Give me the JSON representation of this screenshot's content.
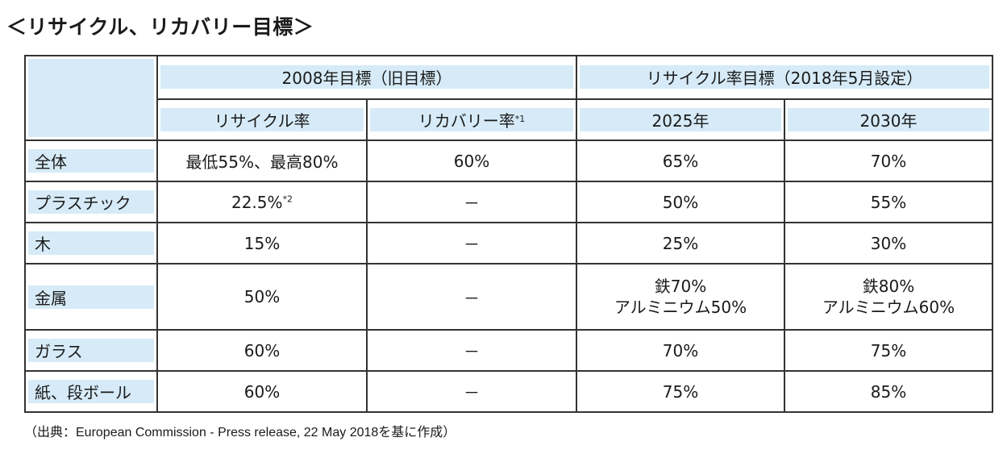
{
  "title": "＜リサイクル、リカバリー目標＞",
  "table": {
    "group_headers": {
      "old": "2008年目標（旧目標）",
      "new": "リサイクル率目標（2018年5月設定）"
    },
    "sub_headers": {
      "recycle_rate": "リサイクル率",
      "recovery_rate": "リカバリー率",
      "recovery_note": "*1",
      "y2025": "2025年",
      "y2030": "2030年"
    },
    "rows": [
      {
        "label": "全体",
        "c1": "最低55%、最高80%",
        "c1_note": "",
        "c2": "60%",
        "c3": "65%",
        "c3b": "",
        "c4": "70%",
        "c4b": ""
      },
      {
        "label": "プラスチック",
        "c1": "22.5%",
        "c1_note": "*2",
        "c2": "－",
        "c3": "50%",
        "c3b": "",
        "c4": "55%",
        "c4b": ""
      },
      {
        "label": "木",
        "c1": "15%",
        "c1_note": "",
        "c2": "－",
        "c3": "25%",
        "c3b": "",
        "c4": "30%",
        "c4b": ""
      },
      {
        "label": "金属",
        "c1": "50%",
        "c1_note": "",
        "c2": "－",
        "c3": "鉄70%",
        "c3b": "アルミニウム50%",
        "c4": "鉄80%",
        "c4b": "アルミニウム60%"
      },
      {
        "label": "ガラス",
        "c1": "60%",
        "c1_note": "",
        "c2": "－",
        "c3": "70%",
        "c3b": "",
        "c4": "75%",
        "c4b": ""
      },
      {
        "label": "紙、段ボール",
        "c1": "60%",
        "c1_note": "",
        "c2": "－",
        "c3": "75%",
        "c3b": "",
        "c4": "85%",
        "c4b": ""
      }
    ]
  },
  "source": "（出典：European Commission - Press release, 22 May 2018を基に作成）",
  "colors": {
    "header_fill": "#d6ebf7",
    "border": "#333333"
  }
}
